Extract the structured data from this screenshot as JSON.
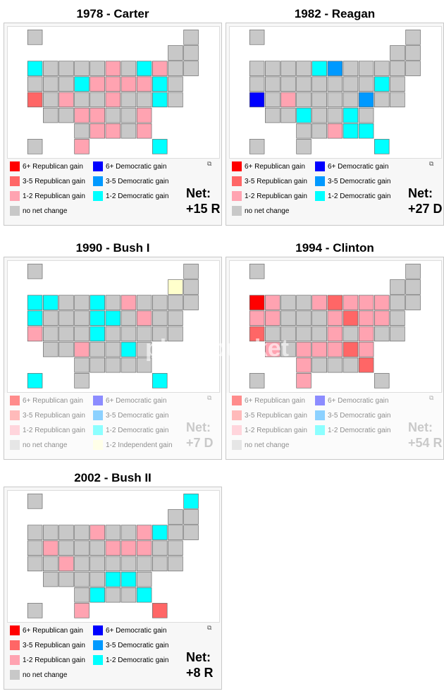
{
  "colors": {
    "r6": "#ff0000",
    "r35": "#ff6666",
    "r12": "#ffa3b1",
    "d6": "#0000ff",
    "d35": "#0099ff",
    "d12": "#00ffff",
    "none": "#c8c8c8",
    "i12": "#ffffcc"
  },
  "legend": {
    "r6": "6+ Republican gain",
    "r35": "3-5 Republican gain",
    "r12": "1-2 Republican gain",
    "none": "no net change",
    "d6": "6+ Democratic gain",
    "d35": "3-5 Democratic gain",
    "d12": "1-2 Democratic gain",
    "i12": "1-2 Independent gain"
  },
  "net_label": "Net:",
  "watermark": "photobucket",
  "panels": [
    {
      "title": "1978 - Carter",
      "net": "+15 R",
      "states": {
        "CA": "r35",
        "WA": "d12",
        "SD": "d12",
        "MI": "d12",
        "FL": "d12",
        "MD": "d12",
        "NJ": "d12",
        "CO": "r12",
        "KS": "r12",
        "TX": "r12",
        "IA": "r12",
        "IL": "r12",
        "IN": "r12",
        "PA": "r12",
        "NY": "r12",
        "AR": "r12",
        "MS": "r12",
        "GA": "r12",
        "SC": "r12",
        "KY": "r12",
        "OH": "r12",
        "LA": "r12"
      }
    },
    {
      "title": "1982 - Reagan",
      "net": "+27 D",
      "states": {
        "CA": "d6",
        "IL": "d35",
        "VA": "d35",
        "MN": "d12",
        "KS": "d12",
        "NC": "d12",
        "AL": "d12",
        "GA": "d12",
        "FL": "d12",
        "NJ": "d12",
        "CO": "r12",
        "MS": "r12"
      }
    },
    {
      "title": "1990 - Bush I",
      "net": "+7 D",
      "independent": true,
      "states": {
        "WA": "d12",
        "OR": "d12",
        "ID": "d12",
        "MN": "d12",
        "MO": "d12",
        "IN": "d12",
        "NC": "d12",
        "FL": "d12",
        "HI": "d12",
        "IA": "d12",
        "CA": "r12",
        "WI": "r12",
        "PA": "r12",
        "KS": "r12",
        "VT": "i12"
      }
    },
    {
      "title": "1994 - Clinton",
      "net": "+54 R",
      "states": {
        "WA": "r6",
        "CA": "r35",
        "OH": "r35",
        "GA": "r35",
        "NC": "r35",
        "IL": "r35",
        "OR": "r12",
        "NV": "r12",
        "AZ": "r12",
        "ID": "r12",
        "TX": "r12",
        "OK": "r12",
        "KS": "r12",
        "WI": "r12",
        "MI": "r12",
        "IN": "r12",
        "NY": "r12",
        "PA": "r12",
        "KY": "r12",
        "VA": "r12",
        "SC": "r12",
        "TN": "r12",
        "MN": "r12",
        "NJ": "r12",
        "AR": "r12"
      }
    },
    {
      "title": "2002 - Bush II",
      "net": "+8 R",
      "states": {
        "NV": "r12",
        "CO": "r12",
        "TX": "r12",
        "MN": "r12",
        "MI": "r12",
        "IN": "r12",
        "OH": "r12",
        "PA": "r12",
        "FL": "r35",
        "NY": "d12",
        "TN": "d12",
        "NC": "d12",
        "GA": "d12",
        "LA": "d12",
        "ME": "d12"
      }
    }
  ]
}
